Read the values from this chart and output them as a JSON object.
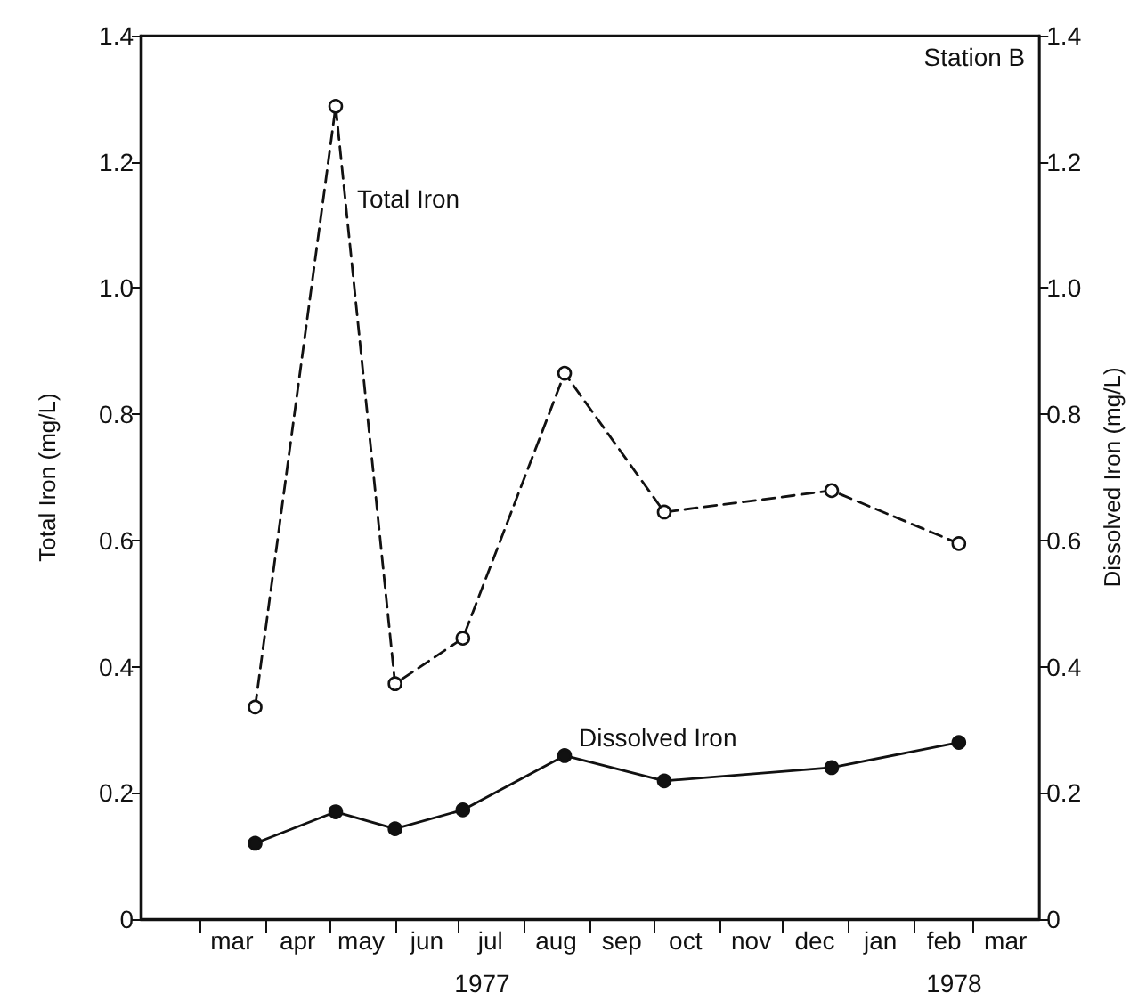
{
  "chart_data": {
    "type": "line",
    "ylabel": "Total Iron (mg/L)",
    "y2label": "Dissolved Iron (mg/L)",
    "x": [
      "1977-03-27",
      "1977-05-04",
      "1977-06-01",
      "1977-07-03",
      "1977-08-20",
      "1977-10-06",
      "1977-12-24",
      "1978-02-22"
    ],
    "series": [
      {
        "name": "Total Iron",
        "color": "#111111",
        "line_style": "dashed",
        "marker": "circle",
        "values": [
          0.336,
          1.288,
          0.373,
          0.445,
          0.865,
          0.645,
          0.679,
          0.595
        ]
      },
      {
        "name": "Dissolved Iron",
        "color": "#111111",
        "line_style": "solid",
        "marker": "circle",
        "axis": "y2",
        "values": [
          0.12,
          0.17,
          0.143,
          0.173,
          0.259,
          0.219,
          0.24,
          0.28
        ]
      }
    ],
    "xlim": [
      "1977-02-01",
      "1978-04-01"
    ],
    "xticks": [
      {
        "value": "1977-03-01",
        "label": null
      },
      {
        "value": "1977-04-01",
        "label": null
      },
      {
        "value": "1977-05-01",
        "label": null
      },
      {
        "value": "1977-06-01",
        "label": null
      },
      {
        "value": "1977-07-01",
        "label": null
      },
      {
        "value": "1977-08-01",
        "label": null
      },
      {
        "value": "1977-09-01",
        "label": null
      },
      {
        "value": "1977-10-01",
        "label": null
      },
      {
        "value": "1977-11-01",
        "label": null
      },
      {
        "value": "1977-12-01",
        "label": null
      },
      {
        "value": "1978-01-01",
        "label": null
      },
      {
        "value": "1978-02-01",
        "label": null
      },
      {
        "value": "1978-03-01",
        "label": null
      },
      {
        "value": "1977-03-16",
        "label": "mar"
      },
      {
        "value": "1977-04-16",
        "label": "apr"
      },
      {
        "value": "1977-05-16",
        "label": "may"
      },
      {
        "value": "1977-06-16",
        "label": "jun"
      },
      {
        "value": "1977-07-16",
        "label": "jul"
      },
      {
        "value": "1977-08-16",
        "label": "aug"
      },
      {
        "value": "1977-09-16",
        "label": "sep"
      },
      {
        "value": "1977-10-16",
        "label": "oct"
      },
      {
        "value": "1977-11-16",
        "label": "nov"
      },
      {
        "value": "1977-12-16",
        "label": "dec"
      },
      {
        "value": "1978-01-16",
        "label": "jan"
      },
      {
        "value": "1978-02-15",
        "label": "feb"
      },
      {
        "value": "1978-03-16",
        "label": "mar"
      }
    ],
    "ylim": [
      0,
      1.4
    ],
    "yticks": [
      0,
      0.2,
      0.4,
      0.6,
      {
        "value": 1,
        "label": "1.0"
      },
      1.2,
      1.4,
      0.8
    ],
    "y2lim": [
      0,
      1.4
    ],
    "y2ticks": [
      0,
      0.2,
      0.4,
      0.6,
      0.8,
      {
        "value": 1,
        "label": "1.0"
      },
      1.2,
      1.4
    ],
    "grid": false,
    "legend": false,
    "annotations": [
      "Station B",
      "1977",
      "1978"
    ]
  }
}
